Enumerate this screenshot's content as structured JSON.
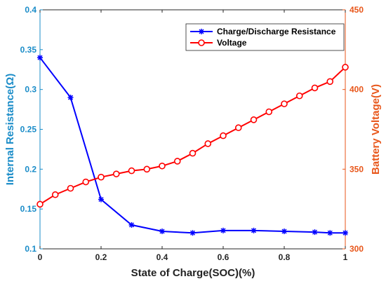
{
  "chart_data": {
    "type": "line",
    "xlabel": "State of Charge(SOC)(%)",
    "ylabel_left": "Internal Resistance(Ω)",
    "ylabel_right": "Battery Voltage(V)",
    "xlim": [
      0,
      1
    ],
    "ylim_left": [
      0.1,
      0.4
    ],
    "ylim_right": [
      300,
      450
    ],
    "x_ticks": [
      "0",
      "0.2",
      "0.4",
      "0.6",
      "0.8",
      "1"
    ],
    "x_tick_values": [
      0,
      0.2,
      0.4,
      0.6,
      0.8,
      1
    ],
    "y_left_ticks": [
      "0.1",
      "0.15",
      "0.2",
      "0.25",
      "0.3",
      "0.35",
      "0.4"
    ],
    "y_left_tick_values": [
      0.1,
      0.15,
      0.2,
      0.25,
      0.3,
      0.35,
      0.4
    ],
    "y_right_ticks": [
      "300",
      "350",
      "400",
      "450"
    ],
    "y_right_tick_values": [
      300,
      350,
      400,
      450
    ],
    "grid": false,
    "legend_position": "top-right",
    "colors": {
      "resistance": "#0000FF",
      "voltage": "#FF0000",
      "left_axis": "#1A8CC8",
      "right_axis": "#E8561A"
    },
    "series": [
      {
        "name": "Charge/Discharge Resistance",
        "axis": "left",
        "marker": "asterisk",
        "x": [
          0,
          0.1,
          0.2,
          0.3,
          0.4,
          0.5,
          0.6,
          0.7,
          0.8,
          0.9,
          0.95,
          1
        ],
        "y": [
          0.34,
          0.29,
          0.162,
          0.13,
          0.122,
          0.12,
          0.123,
          0.123,
          0.122,
          0.121,
          0.12,
          0.12
        ]
      },
      {
        "name": "Voltage",
        "axis": "right",
        "marker": "circle",
        "x": [
          0,
          0.05,
          0.1,
          0.15,
          0.2,
          0.25,
          0.3,
          0.35,
          0.4,
          0.45,
          0.5,
          0.55,
          0.6,
          0.65,
          0.7,
          0.75,
          0.8,
          0.85,
          0.9,
          0.95,
          1
        ],
        "y": [
          328,
          334,
          338,
          342,
          345,
          347,
          349,
          350,
          352,
          355,
          360,
          366,
          371,
          376,
          381,
          386,
          391,
          396,
          401,
          405,
          414
        ]
      }
    ]
  }
}
